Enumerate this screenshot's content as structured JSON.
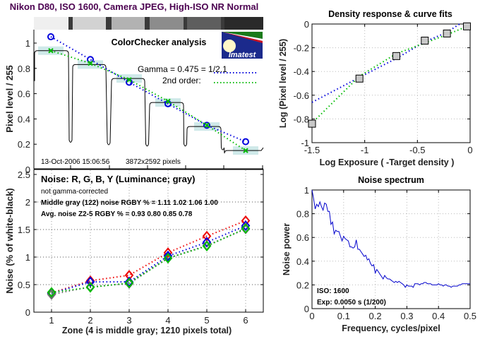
{
  "main_title": "Nikon D80, ISO 1600, Camera JPEG, High-ISO NR Normal",
  "colors": {
    "title": "#4b0050",
    "blue": "#0000dd",
    "green": "#00bb00",
    "red": "#ee0000",
    "gray_marker": "#707070",
    "highlight": "#cfe9e9",
    "trace": "#000000",
    "spectrum": "#0000cc"
  },
  "chart_data": [
    {
      "id": "colorchecker",
      "type": "line",
      "title": "ColorChecker analysis",
      "xlabel": "",
      "ylabel": "Pixel level / 255",
      "ylim": [
        0,
        1.1
      ],
      "yticks": [
        0,
        0.2,
        0.4,
        0.6,
        0.8,
        1
      ],
      "ytick_labels": [
        "0",
        "0.2",
        "0.4",
        "0.6",
        "0.8",
        "1"
      ],
      "grid": false,
      "patch_strip_grays": [
        "#efefef",
        "#d2d2d2",
        "#b2b2b2",
        "#8c8c8c",
        "#5e5e5e",
        "#2a2a2a"
      ],
      "patch_levels": [
        0.94,
        0.83,
        0.72,
        0.53,
        0.34,
        0.15
      ],
      "gap_minimum": [
        0.21,
        0.19,
        0.18,
        0.18,
        0.15
      ],
      "series": [
        {
          "name": "Gamma = 0.475 = 1/2.1",
          "marker": "circle",
          "color": "blue",
          "values": [
            1.05,
            0.87,
            0.69,
            0.52,
            0.35,
            0.22
          ]
        },
        {
          "name": "2nd order:",
          "marker": "x",
          "color": "green",
          "values": [
            0.94,
            0.84,
            0.71,
            0.54,
            0.35,
            0.15
          ]
        }
      ],
      "annotations": {
        "gamma": "Gamma = 0.475 = 1/2.1",
        "second_order": "2nd order:",
        "timestamp": "13-Oct-2006 15:06:56",
        "resolution": "3872x2592 pixels",
        "logo": "Imatest"
      }
    },
    {
      "id": "noise",
      "type": "line",
      "title": "Noise: R, G, B, Y (Luminance; gray)",
      "subtitle": "not gamma-corrected",
      "xlabel": "Zone  (4 is middle gray;  1210 pixels total)",
      "ylabel": "Noise (% of white-black)",
      "x": [
        1,
        2,
        3,
        4,
        5,
        6
      ],
      "xlim": [
        0.55,
        6.45
      ],
      "ylim": [
        0,
        2.5
      ],
      "yticks": [
        0,
        0.5,
        1,
        1.5,
        2,
        2.5
      ],
      "ytick_labels": [
        "0",
        "0.5",
        "1",
        "1.5",
        "2",
        "2.5"
      ],
      "xtick_labels": [
        "1",
        "2",
        "3",
        "4",
        "5",
        "6"
      ],
      "grid": true,
      "series": [
        {
          "name": "R",
          "color": "red",
          "values": [
            0.35,
            0.57,
            0.67,
            1.08,
            1.38,
            1.66
          ]
        },
        {
          "name": "B",
          "color": "blue",
          "values": [
            0.34,
            0.55,
            0.55,
            1.02,
            1.27,
            1.57
          ]
        },
        {
          "name": "Y",
          "color": "gray_marker",
          "values": [
            0.32,
            0.46,
            0.52,
            0.98,
            1.21,
            1.51
          ]
        },
        {
          "name": "G",
          "color": "green",
          "values": [
            0.36,
            0.45,
            0.53,
            0.98,
            1.2,
            1.52
          ]
        }
      ],
      "annotations": {
        "middle_gray": "Middle gray (122) noise RGBY % = 1.11  1.02  1.06  1.00",
        "avg_noise": "Avg. noise Z2-5 RGBY % = 0.93  0.80  0.85  0.78"
      }
    },
    {
      "id": "density",
      "type": "scatter",
      "title": "Density response & curve fits",
      "xlabel": "Log Exposure ( -Target density )",
      "ylabel": "Log (Pixel level / 255)",
      "xlim": [
        -1.5,
        0
      ],
      "ylim": [
        -1,
        0
      ],
      "xticks": [
        -1.5,
        -1,
        -0.5,
        0
      ],
      "xtick_labels": [
        "-1.5",
        "-1",
        "-0.5",
        "0"
      ],
      "yticks": [
        -1,
        -0.8,
        -0.6,
        -0.4,
        -0.2,
        0
      ],
      "ytick_labels": [
        "-1",
        "-0.8",
        "-0.6",
        "-0.4",
        "-0.2",
        "0"
      ],
      "grid": true,
      "points": {
        "x": [
          -1.5,
          -1.05,
          -0.7,
          -0.43,
          -0.22,
          -0.03
        ],
        "y": [
          -0.84,
          -0.46,
          -0.27,
          -0.14,
          -0.08,
          -0.02
        ]
      },
      "fits": [
        {
          "name": "gamma",
          "color": "blue",
          "x": [
            -1.5,
            -1.05,
            -0.7,
            -0.43,
            -0.22,
            -0.1
          ],
          "y": [
            -0.66,
            -0.45,
            -0.29,
            -0.15,
            -0.07,
            0.0
          ]
        },
        {
          "name": "2nd order",
          "color": "green",
          "x": [
            -1.46,
            -1.05,
            -0.7,
            -0.43,
            -0.22,
            -0.03
          ],
          "y": [
            -0.8,
            -0.44,
            -0.25,
            -0.16,
            -0.09,
            -0.02
          ]
        }
      ]
    },
    {
      "id": "spectrum",
      "type": "line",
      "title": "Noise spectrum",
      "xlabel": "Frequency, cycles/pixel",
      "ylabel": "Noise power",
      "xlim": [
        0,
        0.5
      ],
      "ylim": [
        0,
        1
      ],
      "xticks": [
        0,
        0.1,
        0.2,
        0.3,
        0.4,
        0.5
      ],
      "xtick_labels": [
        "0",
        "0.1",
        "0.2",
        "0.3",
        "0.4",
        "0.5"
      ],
      "yticks": [
        0,
        0.2,
        0.4,
        0.6,
        0.8,
        1
      ],
      "ytick_labels": [
        "0",
        "0.2",
        "0.4",
        "0.6",
        "0.8",
        "1"
      ],
      "grid": true,
      "x": [
        0.0,
        0.005,
        0.01,
        0.015,
        0.02,
        0.025,
        0.03,
        0.035,
        0.04,
        0.045,
        0.05,
        0.055,
        0.06,
        0.065,
        0.07,
        0.075,
        0.08,
        0.085,
        0.09,
        0.095,
        0.1,
        0.105,
        0.11,
        0.115,
        0.12,
        0.125,
        0.13,
        0.135,
        0.14,
        0.145,
        0.15,
        0.155,
        0.16,
        0.165,
        0.17,
        0.175,
        0.18,
        0.185,
        0.19,
        0.195,
        0.2,
        0.205,
        0.21,
        0.215,
        0.22,
        0.225,
        0.23,
        0.235,
        0.24,
        0.245,
        0.25,
        0.255,
        0.26,
        0.265,
        0.27,
        0.275,
        0.28,
        0.285,
        0.29,
        0.295,
        0.3,
        0.305,
        0.31,
        0.315,
        0.32,
        0.325,
        0.33,
        0.335,
        0.34,
        0.345,
        0.35,
        0.355,
        0.36,
        0.365,
        0.37,
        0.375,
        0.38,
        0.385,
        0.39,
        0.395,
        0.4,
        0.405,
        0.41,
        0.415,
        0.42,
        0.425,
        0.43,
        0.435,
        0.44,
        0.445,
        0.45,
        0.455,
        0.46,
        0.465,
        0.47,
        0.475,
        0.48,
        0.485,
        0.49,
        0.495,
        0.5
      ],
      "values": [
        1.0,
        0.93,
        0.84,
        0.88,
        0.86,
        0.9,
        0.86,
        0.83,
        0.89,
        0.88,
        0.82,
        0.82,
        0.71,
        0.73,
        0.63,
        0.66,
        0.65,
        0.65,
        0.61,
        0.57,
        0.61,
        0.59,
        0.58,
        0.57,
        0.52,
        0.52,
        0.51,
        0.52,
        0.58,
        0.5,
        0.5,
        0.48,
        0.46,
        0.44,
        0.45,
        0.41,
        0.42,
        0.38,
        0.36,
        0.37,
        0.3,
        0.33,
        0.31,
        0.29,
        0.27,
        0.25,
        0.28,
        0.26,
        0.25,
        0.25,
        0.24,
        0.23,
        0.22,
        0.23,
        0.22,
        0.23,
        0.22,
        0.21,
        0.2,
        0.18,
        0.2,
        0.19,
        0.19,
        0.19,
        0.18,
        0.21,
        0.21,
        0.21,
        0.2,
        0.21,
        0.21,
        0.22,
        0.22,
        0.21,
        0.21,
        0.21,
        0.2,
        0.2,
        0.2,
        0.2,
        0.21,
        0.2,
        0.2,
        0.19,
        0.2,
        0.2,
        0.19,
        0.19,
        0.18,
        0.19,
        0.19,
        0.19,
        0.19,
        0.2,
        0.2,
        0.21,
        0.21,
        0.21,
        0.21,
        0.21,
        0.21
      ],
      "annotations": {
        "iso": "ISO:   1600",
        "exposure": "Exp:   0.0050 s  (1/200)"
      }
    }
  ]
}
